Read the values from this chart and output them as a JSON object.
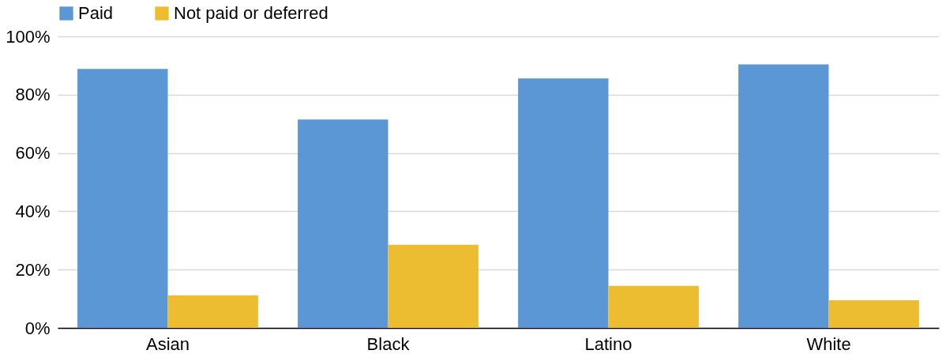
{
  "chart_data": {
    "type": "bar",
    "categories": [
      "Asian",
      "Black",
      "Latino",
      "White"
    ],
    "series": [
      {
        "name": "Paid",
        "color": "#5b97d5",
        "values": [
          88.8,
          71.5,
          85.6,
          90.4
        ]
      },
      {
        "name": "Not paid or deferred",
        "color": "#ecbd30",
        "values": [
          11.2,
          28.5,
          14.4,
          9.5
        ]
      }
    ],
    "ylim": [
      0,
      100
    ],
    "yticks": [
      {
        "value": 0,
        "label": "0%"
      },
      {
        "value": 20,
        "label": "20%"
      },
      {
        "value": 40,
        "label": "40%"
      },
      {
        "value": 60,
        "label": "60%"
      },
      {
        "value": 80,
        "label": "80%"
      },
      {
        "value": 100,
        "label": "100%"
      }
    ],
    "grid": "y",
    "legend": "top"
  }
}
